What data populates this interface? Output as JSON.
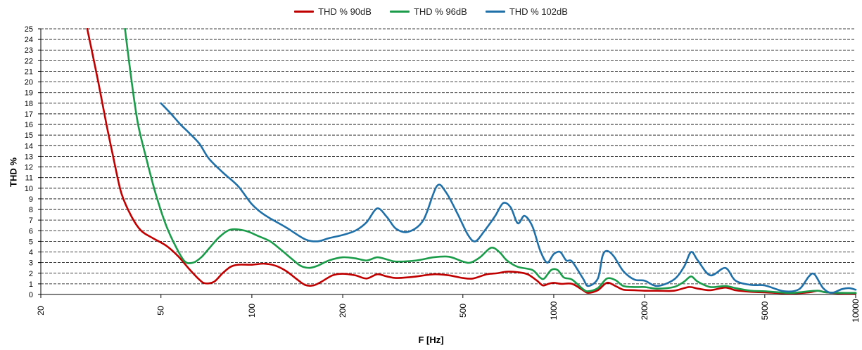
{
  "chart_data": {
    "type": "line",
    "title": "",
    "xlabel": "F [Hz]",
    "ylabel": "THD %",
    "xscale": "log",
    "xlim": [
      20,
      10000
    ],
    "ylim": [
      0,
      25
    ],
    "grid": "horizontal dashed",
    "legend_position": "top-center",
    "x_ticks": [
      20,
      50,
      100,
      200,
      500,
      1000,
      2000,
      5000,
      10000
    ],
    "x_tick_labels": [
      "20",
      "50",
      "100",
      "200",
      "500",
      "1000",
      "2000",
      "5000",
      "10000"
    ],
    "y_ticks": [
      0,
      1,
      2,
      3,
      4,
      5,
      6,
      7,
      8,
      9,
      10,
      11,
      12,
      13,
      14,
      15,
      16,
      17,
      18,
      19,
      20,
      21,
      22,
      23,
      24,
      25
    ],
    "series": [
      {
        "name": "THD % 90dB",
        "color": "#c00000",
        "points": [
          [
            28.5,
            25
          ],
          [
            31,
            20
          ],
          [
            33,
            16
          ],
          [
            35,
            12.5
          ],
          [
            37,
            9.5
          ],
          [
            40,
            7.3
          ],
          [
            43,
            6
          ],
          [
            47,
            5.3
          ],
          [
            52,
            4.6
          ],
          [
            57,
            3.6
          ],
          [
            62,
            2.4
          ],
          [
            67,
            1.4
          ],
          [
            70,
            1.05
          ],
          [
            75,
            1.2
          ],
          [
            80,
            2.0
          ],
          [
            85,
            2.6
          ],
          [
            90,
            2.8
          ],
          [
            100,
            2.8
          ],
          [
            110,
            2.9
          ],
          [
            120,
            2.7
          ],
          [
            130,
            2.2
          ],
          [
            140,
            1.5
          ],
          [
            150,
            0.9
          ],
          [
            160,
            0.85
          ],
          [
            170,
            1.2
          ],
          [
            185,
            1.8
          ],
          [
            200,
            1.95
          ],
          [
            220,
            1.8
          ],
          [
            240,
            1.5
          ],
          [
            260,
            1.9
          ],
          [
            280,
            1.7
          ],
          [
            300,
            1.55
          ],
          [
            340,
            1.65
          ],
          [
            400,
            1.9
          ],
          [
            450,
            1.8
          ],
          [
            500,
            1.55
          ],
          [
            540,
            1.5
          ],
          [
            600,
            1.9
          ],
          [
            650,
            2.0
          ],
          [
            700,
            2.15
          ],
          [
            760,
            2.1
          ],
          [
            820,
            1.9
          ],
          [
            880,
            1.3
          ],
          [
            920,
            0.85
          ],
          [
            960,
            1.0
          ],
          [
            1000,
            1.1
          ],
          [
            1060,
            1.0
          ],
          [
            1150,
            1.0
          ],
          [
            1250,
            0.4
          ],
          [
            1300,
            0.15
          ],
          [
            1400,
            0.4
          ],
          [
            1500,
            1.1
          ],
          [
            1600,
            0.8
          ],
          [
            1700,
            0.45
          ],
          [
            1850,
            0.4
          ],
          [
            2000,
            0.35
          ],
          [
            2200,
            0.35
          ],
          [
            2500,
            0.35
          ],
          [
            2800,
            0.7
          ],
          [
            3000,
            0.55
          ],
          [
            3300,
            0.4
          ],
          [
            3700,
            0.65
          ],
          [
            4000,
            0.4
          ],
          [
            4500,
            0.25
          ],
          [
            5000,
            0.2
          ],
          [
            6000,
            0.1
          ],
          [
            7000,
            0.2
          ],
          [
            7500,
            0.35
          ],
          [
            8000,
            0.2
          ],
          [
            9000,
            0.1
          ],
          [
            10000,
            0.1
          ]
        ]
      },
      {
        "name": "THD % 96dB",
        "color": "#1a9c4a",
        "points": [
          [
            38,
            25
          ],
          [
            40,
            20
          ],
          [
            42,
            16
          ],
          [
            45,
            12.5
          ],
          [
            48,
            9.5
          ],
          [
            52,
            6.5
          ],
          [
            56,
            4.5
          ],
          [
            60,
            3.1
          ],
          [
            64,
            3.0
          ],
          [
            68,
            3.5
          ],
          [
            72,
            4.3
          ],
          [
            78,
            5.4
          ],
          [
            85,
            6.1
          ],
          [
            95,
            6.0
          ],
          [
            105,
            5.5
          ],
          [
            115,
            5.0
          ],
          [
            125,
            4.2
          ],
          [
            135,
            3.4
          ],
          [
            145,
            2.7
          ],
          [
            155,
            2.5
          ],
          [
            165,
            2.7
          ],
          [
            180,
            3.2
          ],
          [
            200,
            3.5
          ],
          [
            220,
            3.4
          ],
          [
            240,
            3.2
          ],
          [
            260,
            3.5
          ],
          [
            280,
            3.3
          ],
          [
            300,
            3.1
          ],
          [
            350,
            3.2
          ],
          [
            400,
            3.5
          ],
          [
            450,
            3.55
          ],
          [
            500,
            3.1
          ],
          [
            530,
            3.0
          ],
          [
            570,
            3.5
          ],
          [
            620,
            4.4
          ],
          [
            660,
            4.0
          ],
          [
            700,
            3.2
          ],
          [
            760,
            2.6
          ],
          [
            850,
            2.3
          ],
          [
            900,
            1.6
          ],
          [
            930,
            1.5
          ],
          [
            980,
            2.3
          ],
          [
            1030,
            2.3
          ],
          [
            1080,
            1.6
          ],
          [
            1150,
            1.4
          ],
          [
            1250,
            0.5
          ],
          [
            1300,
            0.3
          ],
          [
            1400,
            0.6
          ],
          [
            1500,
            1.5
          ],
          [
            1600,
            1.35
          ],
          [
            1700,
            0.8
          ],
          [
            1850,
            0.7
          ],
          [
            2000,
            0.7
          ],
          [
            2200,
            0.55
          ],
          [
            2500,
            0.7
          ],
          [
            2700,
            1.2
          ],
          [
            2850,
            1.7
          ],
          [
            3000,
            1.2
          ],
          [
            3300,
            0.7
          ],
          [
            3700,
            0.8
          ],
          [
            4000,
            0.6
          ],
          [
            4500,
            0.35
          ],
          [
            5000,
            0.3
          ],
          [
            6000,
            0.15
          ],
          [
            6500,
            0.2
          ],
          [
            7000,
            0.3
          ],
          [
            7500,
            0.35
          ],
          [
            8000,
            0.2
          ],
          [
            9000,
            0.15
          ],
          [
            10000,
            0.15
          ]
        ]
      },
      {
        "name": "THD % 102dB",
        "color": "#1f6fa8",
        "points": [
          [
            50,
            18
          ],
          [
            54,
            17
          ],
          [
            58,
            16
          ],
          [
            62,
            15.2
          ],
          [
            67,
            14.2
          ],
          [
            72,
            12.8
          ],
          [
            80,
            11.5
          ],
          [
            90,
            10.2
          ],
          [
            100,
            8.5
          ],
          [
            110,
            7.5
          ],
          [
            130,
            6.3
          ],
          [
            150,
            5.2
          ],
          [
            165,
            5.0
          ],
          [
            180,
            5.3
          ],
          [
            200,
            5.6
          ],
          [
            220,
            6.0
          ],
          [
            240,
            6.8
          ],
          [
            260,
            8.1
          ],
          [
            280,
            7.3
          ],
          [
            300,
            6.2
          ],
          [
            330,
            5.9
          ],
          [
            370,
            7.0
          ],
          [
            410,
            10.2
          ],
          [
            440,
            9.6
          ],
          [
            480,
            7.6
          ],
          [
            520,
            5.6
          ],
          [
            550,
            5.0
          ],
          [
            590,
            6.0
          ],
          [
            640,
            7.4
          ],
          [
            680,
            8.6
          ],
          [
            720,
            8.2
          ],
          [
            760,
            6.7
          ],
          [
            800,
            7.4
          ],
          [
            850,
            6.4
          ],
          [
            900,
            4.2
          ],
          [
            950,
            3.0
          ],
          [
            1000,
            3.8
          ],
          [
            1050,
            4.0
          ],
          [
            1100,
            3.2
          ],
          [
            1150,
            3.1
          ],
          [
            1250,
            1.5
          ],
          [
            1300,
            0.8
          ],
          [
            1400,
            1.5
          ],
          [
            1450,
            3.6
          ],
          [
            1500,
            4.1
          ],
          [
            1580,
            3.6
          ],
          [
            1700,
            2.2
          ],
          [
            1850,
            1.4
          ],
          [
            2000,
            1.3
          ],
          [
            2200,
            0.8
          ],
          [
            2500,
            1.4
          ],
          [
            2700,
            2.6
          ],
          [
            2850,
            4.0
          ],
          [
            3000,
            3.2
          ],
          [
            3300,
            1.8
          ],
          [
            3700,
            2.5
          ],
          [
            4000,
            1.3
          ],
          [
            4500,
            0.9
          ],
          [
            5000,
            0.85
          ],
          [
            5800,
            0.3
          ],
          [
            6500,
            0.5
          ],
          [
            7000,
            1.7
          ],
          [
            7300,
            1.9
          ],
          [
            7800,
            0.6
          ],
          [
            8300,
            0.15
          ],
          [
            9000,
            0.5
          ],
          [
            9500,
            0.6
          ],
          [
            10000,
            0.45
          ]
        ]
      }
    ]
  }
}
